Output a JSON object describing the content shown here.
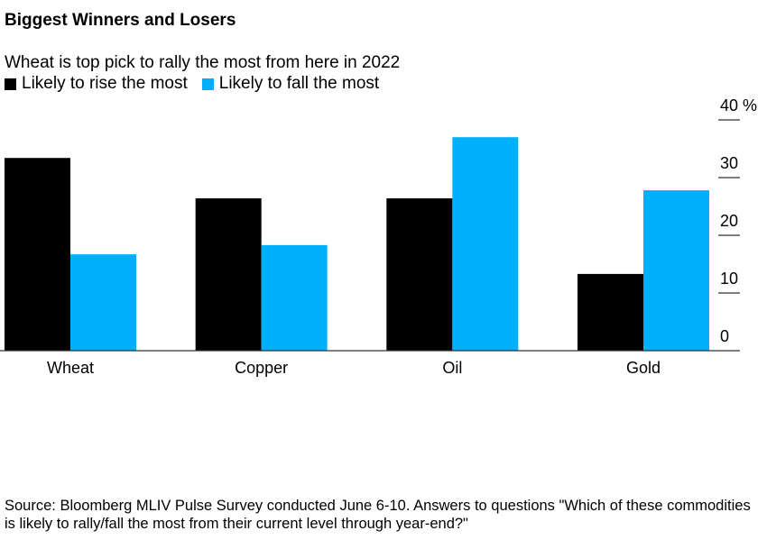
{
  "chart_data": {
    "type": "bar",
    "title": "Biggest Winners and Losers",
    "subtitle": "Wheat is top pick to rally the most from here in 2022",
    "categories": [
      "Wheat",
      "Copper",
      "Oil",
      "Gold"
    ],
    "series": [
      {
        "name": "Likely to rise the most",
        "color": "#000000",
        "values": [
          33.4,
          26.4,
          26.4,
          13.3
        ]
      },
      {
        "name": "Likely to fall the most",
        "color": "#00b0ff",
        "values": [
          16.7,
          18.3,
          37.0,
          27.8
        ]
      }
    ],
    "yticks": [
      0,
      10,
      20,
      30,
      40
    ],
    "ytick_labels": [
      "0",
      "10",
      "20",
      "30",
      "40 %"
    ],
    "ylim": [
      0,
      40
    ],
    "xlabel": "",
    "ylabel": "%",
    "grid": false,
    "legend_position": "top-left",
    "yaxis_position": "right",
    "source": "Source: Bloomberg MLIV Pulse Survey conducted June 6-10. Answers to questions \"Which of these commodities is likely to rally/fall the most from their current level through year-end?\""
  }
}
